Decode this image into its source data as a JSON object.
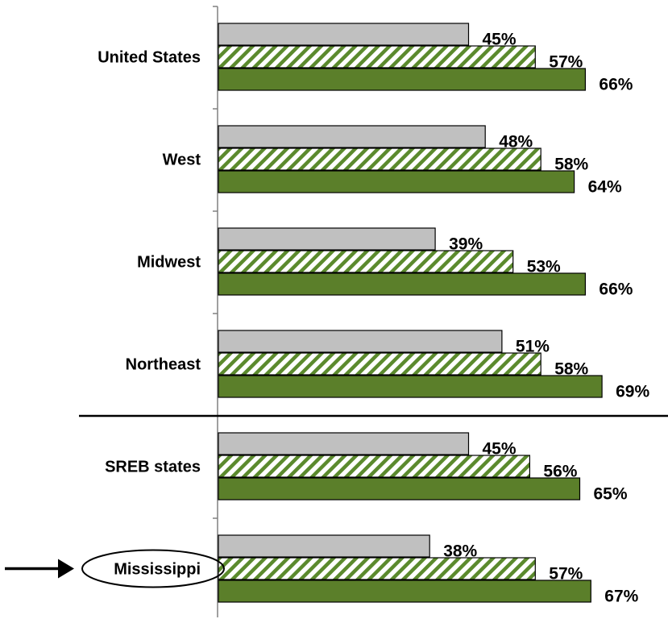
{
  "chart_data": {
    "type": "bar",
    "orientation": "horizontal",
    "categories": [
      "United States",
      "West",
      "Midwest",
      "Northeast",
      "SREB states",
      "Mississippi"
    ],
    "highlighted_category": "Mississippi",
    "series": [
      {
        "values": [
          45,
          48,
          39,
          51,
          45,
          38
        ],
        "labels": [
          "45%",
          "48%",
          "39%",
          "51%",
          "45%",
          "38%"
        ],
        "color": "#c0c0c0",
        "pattern": "solid"
      },
      {
        "values": [
          57,
          58,
          53,
          58,
          56,
          57
        ],
        "labels": [
          "57%",
          "58%",
          "53%",
          "58%",
          "56%",
          "57%"
        ],
        "color": "#5b8a2d",
        "pattern": "diagonal-stripes"
      },
      {
        "values": [
          66,
          64,
          66,
          69,
          65,
          67
        ],
        "labels": [
          "66%",
          "64%",
          "66%",
          "69%",
          "65%",
          "67%"
        ],
        "color": "#5b7f2a",
        "pattern": "solid"
      }
    ],
    "separator_after_category": "Northeast",
    "value_unit": "%",
    "xlim": [
      0,
      100
    ],
    "grid": false,
    "legend": "none"
  },
  "colors": {
    "gray_bar": "#c0c0c0",
    "stripe": "#5b8a2d",
    "green_bar": "#5b7f2a",
    "outline": "#000000"
  }
}
